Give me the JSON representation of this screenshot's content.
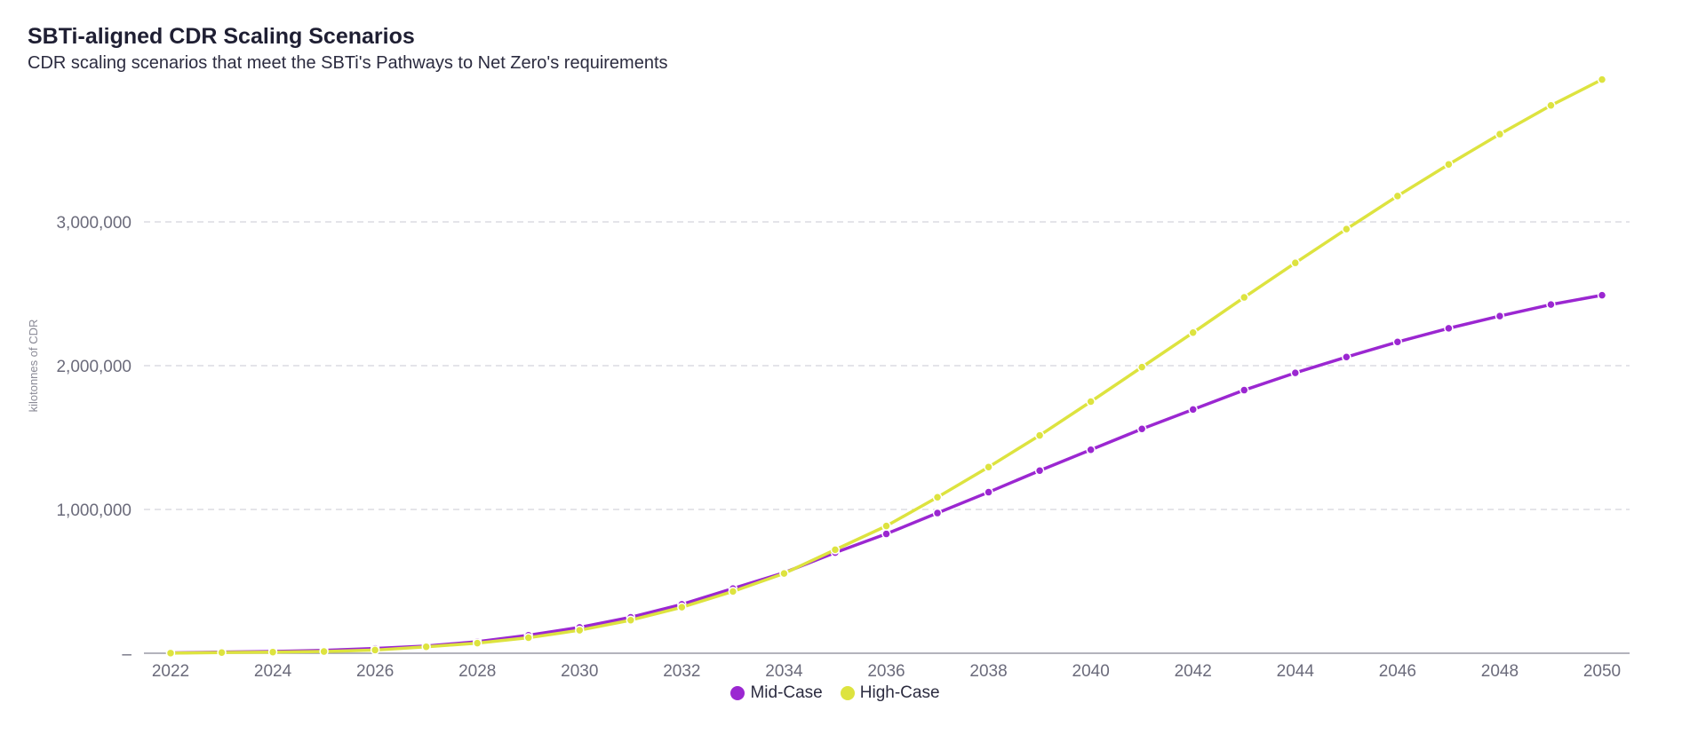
{
  "chart_data": {
    "type": "line",
    "title": "SBTi-aligned CDR Scaling Scenarios",
    "subtitle": "CDR scaling scenarios that meet the SBTi's Pathways to Net Zero's requirements",
    "xlabel": "",
    "ylabel": "kilotonnes of CDR",
    "x": [
      2022,
      2023,
      2024,
      2025,
      2026,
      2027,
      2028,
      2029,
      2030,
      2031,
      2032,
      2033,
      2034,
      2035,
      2036,
      2037,
      2038,
      2039,
      2040,
      2041,
      2042,
      2043,
      2044,
      2045,
      2046,
      2047,
      2048,
      2049,
      2050
    ],
    "x_ticks": [
      "2022",
      "2024",
      "2026",
      "2028",
      "2030",
      "2032",
      "2034",
      "2036",
      "2038",
      "2040",
      "2042",
      "2044",
      "2046",
      "2048",
      "2050"
    ],
    "y_ticks": [
      {
        "value": 0,
        "label": "–"
      },
      {
        "value": 1000000,
        "label": "1,000,000"
      },
      {
        "value": 2000000,
        "label": "2,000,000"
      },
      {
        "value": 3000000,
        "label": "3,000,000"
      }
    ],
    "ylim": [
      0,
      4000000
    ],
    "grid": true,
    "legend_position": "bottom-center",
    "series": [
      {
        "name": "Mid-Case",
        "color": "#9b27d1",
        "values": [
          2000,
          8000,
          12000,
          20000,
          33000,
          50000,
          80000,
          125000,
          180000,
          250000,
          340000,
          450000,
          560000,
          700000,
          830000,
          975000,
          1120000,
          1270000,
          1415000,
          1560000,
          1695000,
          1830000,
          1950000,
          2060000,
          2165000,
          2260000,
          2345000,
          2425000,
          2490000
        ]
      },
      {
        "name": "High-Case",
        "color": "#dde33f",
        "values": [
          1000,
          5000,
          8000,
          12000,
          22000,
          45000,
          70000,
          108000,
          160000,
          230000,
          320000,
          430000,
          555000,
          720000,
          885000,
          1085000,
          1295000,
          1515000,
          1750000,
          1990000,
          2230000,
          2475000,
          2715000,
          2950000,
          3180000,
          3400000,
          3610000,
          3810000,
          3990000
        ]
      }
    ]
  }
}
